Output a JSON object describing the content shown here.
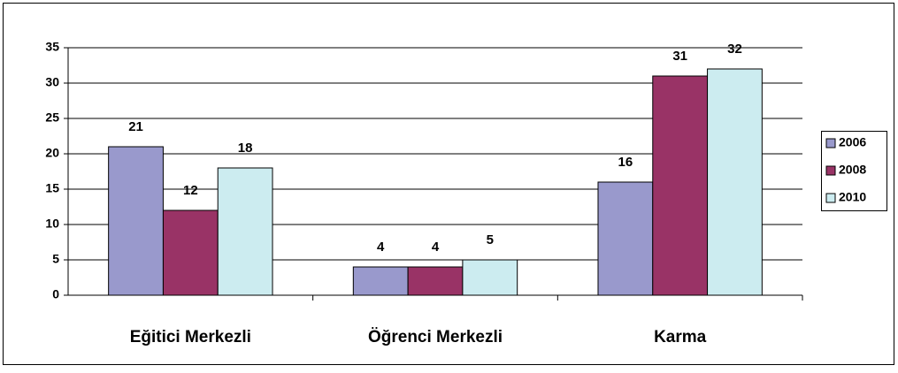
{
  "chart_data": {
    "type": "bar",
    "categories": [
      "Eğitici Merkezli",
      "Öğrenci Merkezli",
      "Karma"
    ],
    "series": [
      {
        "name": "2006",
        "color": "#9999cc",
        "values": [
          21,
          4,
          16
        ]
      },
      {
        "name": "2008",
        "color": "#993366",
        "values": [
          12,
          4,
          31
        ]
      },
      {
        "name": "2010",
        "color": "#ccecf0",
        "values": [
          18,
          5,
          32
        ]
      }
    ],
    "ylim": [
      0,
      35
    ],
    "yticks": [
      0,
      5,
      10,
      15,
      20,
      25,
      30,
      35
    ],
    "grid": true,
    "legend": "right"
  }
}
